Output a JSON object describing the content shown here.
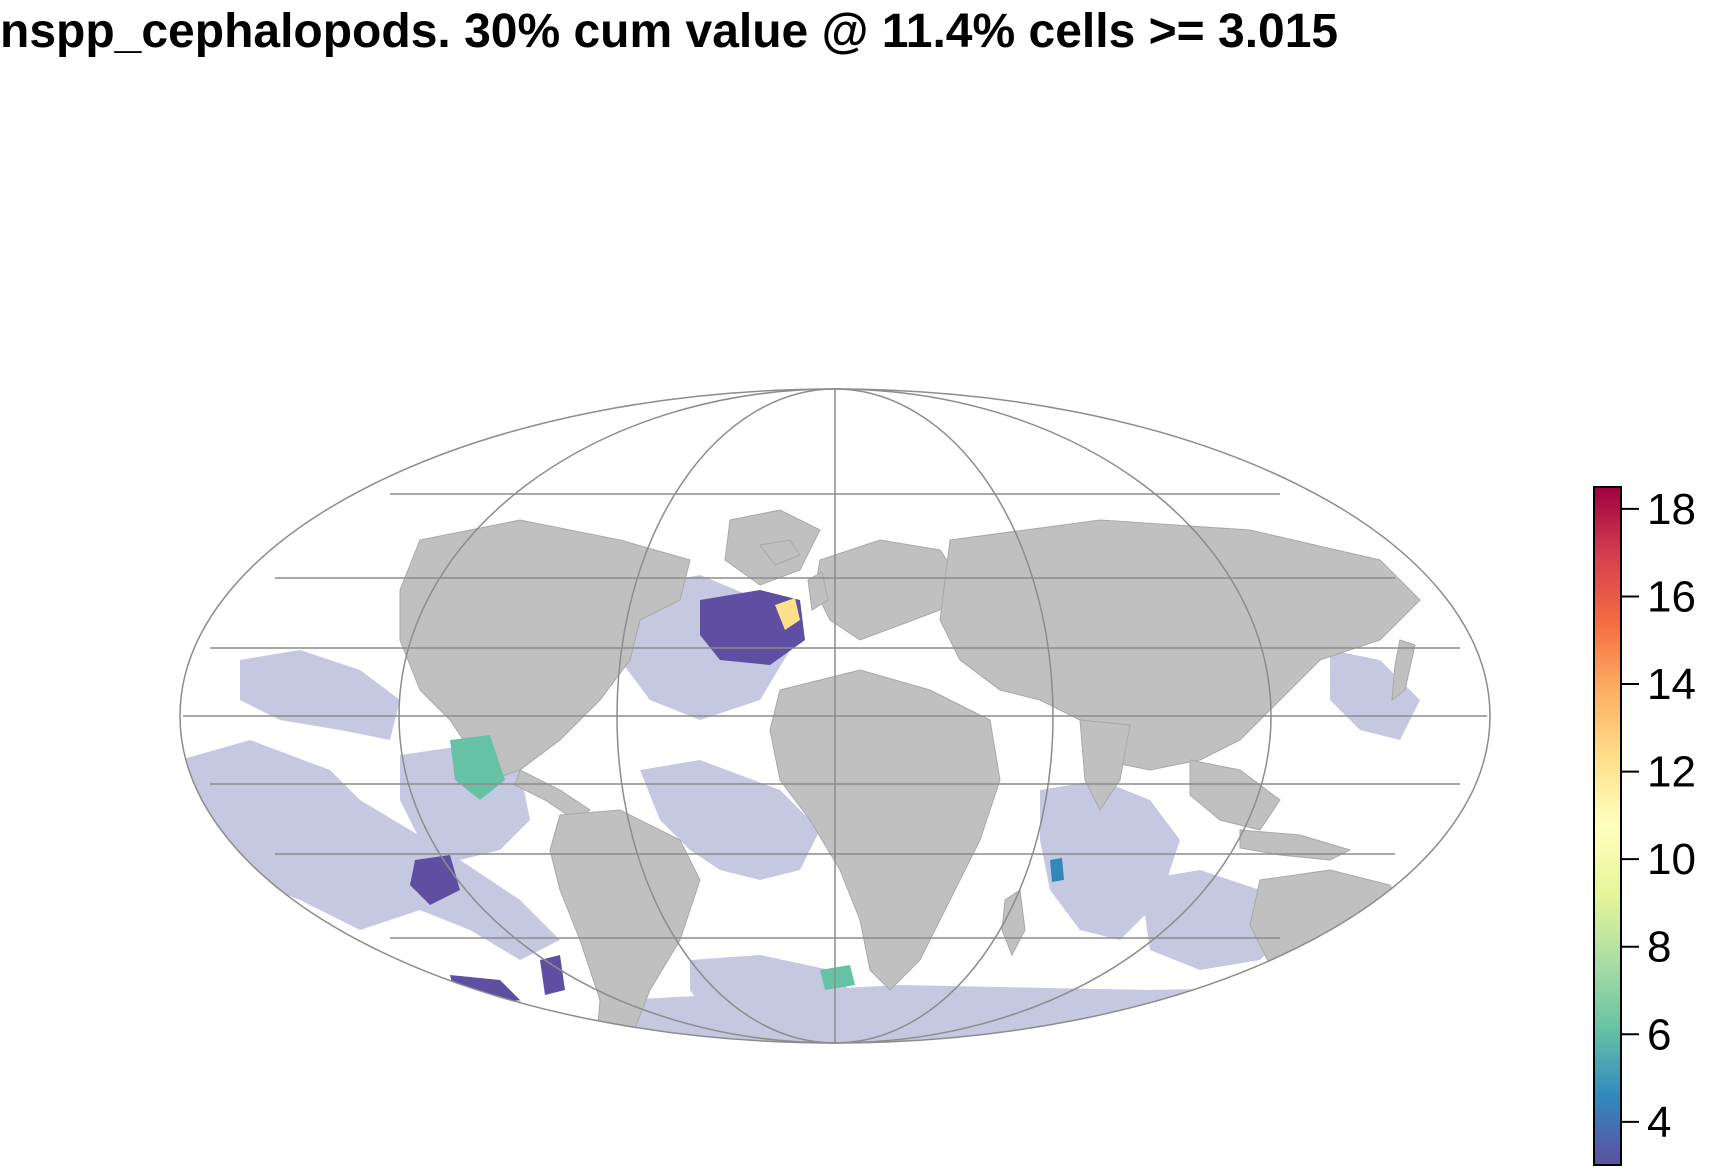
{
  "title": "nspp_cephalopods. 30% cum value @ 11.4% cells >= 3.015",
  "map": {
    "projection": "mollweide",
    "land_color": "#c0c0c0",
    "graticule_color": "#8c8c8c",
    "ocean_low_color": "#c6c7e0",
    "background_color": "#ffffff"
  },
  "legend": {
    "min": 3.015,
    "max": 18.5,
    "ticks": [
      4,
      6,
      8,
      10,
      12,
      14,
      16,
      18
    ],
    "tick_labels": [
      "4",
      "6",
      "8",
      "10",
      "12",
      "14",
      "16",
      "18"
    ],
    "palette": [
      "#5e4fa2",
      "#3288bd",
      "#66c2a5",
      "#abdda4",
      "#e6f598",
      "#ffffbf",
      "#fee08b",
      "#fdae61",
      "#f46d43",
      "#d53e4f",
      "#9e0142"
    ]
  }
}
